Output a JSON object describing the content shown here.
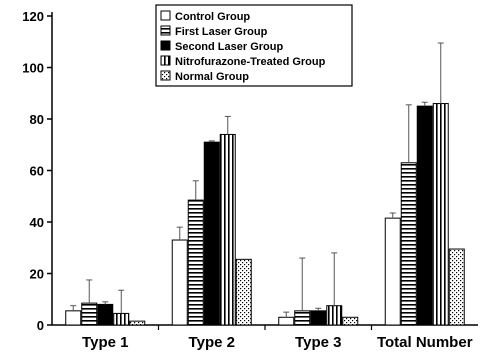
{
  "chart_data": {
    "type": "bar",
    "title": "",
    "xlabel": "",
    "ylabel": "",
    "ylim": [
      0,
      120
    ],
    "yticks": [
      0,
      20,
      40,
      60,
      80,
      100,
      120
    ],
    "grid": false,
    "legend_position": "top-center",
    "categories": [
      "Type 1",
      "Type 2",
      "Type 3",
      "Total Number"
    ],
    "series": [
      {
        "name": "Control Group",
        "pattern": "white",
        "values": [
          5.5,
          33,
          3,
          41.5
        ],
        "errors": [
          2,
          5,
          2,
          2
        ]
      },
      {
        "name": "First Laser Group",
        "pattern": "horizontal-stripes",
        "values": [
          8.5,
          48.5,
          5.5,
          63
        ],
        "errors": [
          9,
          7.5,
          20.5,
          22.5
        ]
      },
      {
        "name": "Second Laser Group",
        "pattern": "solid-black",
        "values": [
          8,
          71,
          5.5,
          85
        ],
        "errors": [
          1,
          0.5,
          1,
          1.5
        ]
      },
      {
        "name": "Nitrofurazone-Treated Group",
        "pattern": "vertical-stripes",
        "values": [
          4.5,
          74,
          7.5,
          86
        ],
        "errors": [
          9,
          7,
          20.5,
          23.5
        ]
      },
      {
        "name": "Normal Group",
        "pattern": "dotted",
        "values": [
          1.5,
          25.5,
          3,
          29.5
        ],
        "errors": [
          0,
          0,
          0,
          0
        ]
      }
    ]
  }
}
